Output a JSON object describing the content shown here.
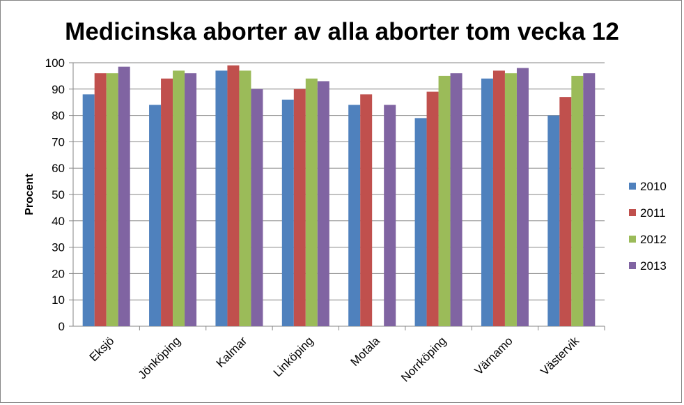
{
  "chart_data": {
    "type": "bar",
    "title": "Medicinska aborter av alla aborter tom vecka 12",
    "xlabel": "",
    "ylabel": "Procent",
    "ylim": [
      0,
      100
    ],
    "yticks": [
      0,
      10,
      20,
      30,
      40,
      50,
      60,
      70,
      80,
      90,
      100
    ],
    "grid": true,
    "legend_position": "right",
    "categories": [
      "Eksjö",
      "Jönköping",
      "Kalmar",
      "Linköping",
      "Motala",
      "Norrköping",
      "Värnamo",
      "Västervik"
    ],
    "series": [
      {
        "name": "2010",
        "color": "#4F81BD",
        "values": [
          88,
          84,
          97,
          86,
          84,
          79,
          94,
          80
        ]
      },
      {
        "name": "2011",
        "color": "#C0504D",
        "values": [
          96,
          94,
          99,
          90,
          88,
          89,
          97,
          87
        ]
      },
      {
        "name": "2012",
        "color": "#9BBB59",
        "values": [
          96,
          97,
          97,
          94,
          null,
          95,
          96,
          95
        ]
      },
      {
        "name": "2013",
        "color": "#8064A2",
        "values": [
          98.5,
          96,
          90,
          93,
          84,
          96,
          98,
          96
        ]
      }
    ]
  }
}
